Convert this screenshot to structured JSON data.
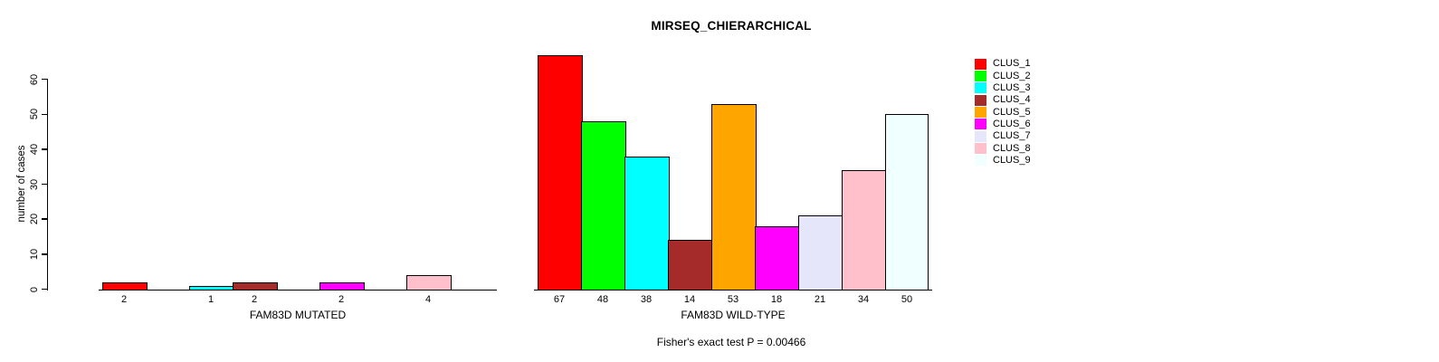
{
  "title": "MIRSEQ_CHIERARCHICAL",
  "footer": "Fisher's exact test P = 0.00466",
  "ylabel": "number of cases",
  "legend": [
    {
      "label": "CLUS_1",
      "color": "#FF0000"
    },
    {
      "label": "CLUS_2",
      "color": "#00FF00"
    },
    {
      "label": "CLUS_3",
      "color": "#00FFFF"
    },
    {
      "label": "CLUS_4",
      "color": "#A52A2A"
    },
    {
      "label": "CLUS_5",
      "color": "#FFA500"
    },
    {
      "label": "CLUS_6",
      "color": "#FF00FF"
    },
    {
      "label": "CLUS_7",
      "color": "#E6E6FA"
    },
    {
      "label": "CLUS_8",
      "color": "#FFC0CB"
    },
    {
      "label": "CLUS_9",
      "color": "#F0FFFF"
    }
  ],
  "chart_data": [
    {
      "type": "bar",
      "xlabel": "FAM83D MUTATED",
      "ylabel": "number of cases",
      "categories": [
        "CLUS_1",
        "CLUS_2",
        "CLUS_3",
        "CLUS_4",
        "CLUS_5",
        "CLUS_6",
        "CLUS_7",
        "CLUS_8",
        "CLUS_9"
      ],
      "values": [
        2,
        0,
        1,
        2,
        0,
        2,
        0,
        4,
        0
      ],
      "bar_labels": [
        "2",
        "",
        "1",
        "2",
        "",
        "2",
        "",
        "4",
        ""
      ],
      "colors": [
        "#FF0000",
        "#00FF00",
        "#00FFFF",
        "#A52A2A",
        "#FFA500",
        "#FF00FF",
        "#E6E6FA",
        "#FFC0CB",
        "#F0FFFF"
      ],
      "ylim": [
        0,
        67
      ],
      "yticks": [
        0,
        10,
        20,
        30,
        40,
        50,
        60
      ],
      "grid": false,
      "legend_position": "right"
    },
    {
      "type": "bar",
      "xlabel": "FAM83D WILD-TYPE",
      "ylabel": "",
      "categories": [
        "CLUS_1",
        "CLUS_2",
        "CLUS_3",
        "CLUS_4",
        "CLUS_5",
        "CLUS_6",
        "CLUS_7",
        "CLUS_8",
        "CLUS_9"
      ],
      "values": [
        67,
        48,
        38,
        14,
        53,
        18,
        21,
        34,
        50
      ],
      "bar_labels": [
        "67",
        "48",
        "38",
        "14",
        "53",
        "18",
        "21",
        "34",
        "50"
      ],
      "colors": [
        "#FF0000",
        "#00FF00",
        "#00FFFF",
        "#A52A2A",
        "#FFA500",
        "#FF00FF",
        "#E6E6FA",
        "#FFC0CB",
        "#F0FFFF"
      ],
      "ylim": [
        0,
        67
      ],
      "yticks": [
        0,
        10,
        20,
        30,
        40,
        50,
        60
      ],
      "grid": false,
      "legend_position": "right"
    }
  ]
}
